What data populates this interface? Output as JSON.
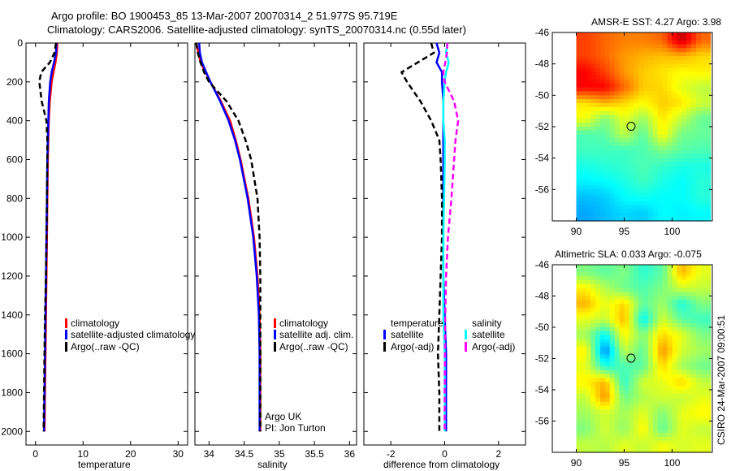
{
  "title": {
    "line1": "Argo profile: BO 1900453_85 13-Mar-2007 20070314_2 51.977S 95.719E",
    "line2": "Climatology: CARS2006. Satellite-adjusted climatology: synTS_20070314.nc (0.55d later)"
  },
  "side_label": "CSIRO 24-Mar-2007 09:00:51",
  "colors": {
    "climatology": "#ff0000",
    "satellite": "#0000ff",
    "argo": "#000000",
    "sal_satellite": "#00ffff",
    "sal_argo": "#ff00ff"
  },
  "chart_data": [
    {
      "type": "line",
      "xlabel": "temperature",
      "xlim": [
        -2,
        32
      ],
      "ylim": [
        0,
        2070
      ],
      "y_reversed": true,
      "xticks": [
        "0",
        "10",
        "20",
        "30"
      ],
      "xtick_values": [
        0,
        10,
        20,
        30
      ],
      "yticks": [
        "0",
        "200",
        "400",
        "600",
        "800",
        "1000",
        "1200",
        "1400",
        "1600",
        "1800",
        "2000"
      ],
      "ytick_values": [
        0,
        200,
        400,
        600,
        800,
        1000,
        1200,
        1400,
        1600,
        1800,
        2000
      ],
      "depth": [
        0,
        50,
        100,
        150,
        200,
        300,
        400,
        500,
        600,
        800,
        1000,
        1200,
        1400,
        1600,
        1800,
        2000
      ],
      "legend": [
        "climatology",
        "satellite-adjusted climatology",
        "Argo(..raw -QC)"
      ],
      "series": [
        {
          "name": "climatology",
          "color": "#ff0000",
          "dash": false,
          "values": [
            4.6,
            4.5,
            4.2,
            3.8,
            3.4,
            3.0,
            2.8,
            2.7,
            2.6,
            2.5,
            2.4,
            2.3,
            2.2,
            2.1,
            2.0,
            1.9
          ]
        },
        {
          "name": "satellite-adjusted climatology",
          "color": "#0000ff",
          "dash": false,
          "values": [
            4.4,
            4.3,
            3.9,
            3.4,
            3.1,
            2.8,
            2.7,
            2.6,
            2.5,
            2.4,
            2.3,
            2.2,
            2.1,
            2.0,
            1.9,
            1.8
          ]
        },
        {
          "name": "Argo(..raw -QC)",
          "color": "#000000",
          "dash": true,
          "values": [
            4.3,
            4.0,
            3.0,
            1.2,
            0.8,
            1.3,
            2.3,
            2.5,
            2.5,
            2.4,
            2.3,
            2.2,
            2.0,
            1.9,
            1.8,
            1.7
          ]
        }
      ]
    },
    {
      "type": "line",
      "xlabel": "salinity",
      "xlim": [
        33.8,
        36.1
      ],
      "ylim": [
        0,
        2070
      ],
      "y_reversed": true,
      "xticks": [
        "34",
        "34.5",
        "35",
        "35.5",
        "36"
      ],
      "xtick_values": [
        34,
        34.5,
        35,
        35.5,
        36
      ],
      "depth": [
        0,
        50,
        100,
        150,
        200,
        300,
        400,
        500,
        600,
        800,
        1000,
        1200,
        1400,
        1600,
        1800,
        2000
      ],
      "legend": [
        "climatology",
        "satellite adj. clim.",
        "Argo(..raw -QC)"
      ],
      "annotation": [
        "Argo UK",
        "PI: Jon Turton"
      ],
      "series": [
        {
          "name": "climatology",
          "color": "#ff0000",
          "dash": false,
          "values": [
            33.82,
            33.85,
            33.88,
            33.95,
            34.02,
            34.17,
            34.3,
            34.38,
            34.45,
            34.56,
            34.64,
            34.69,
            34.72,
            34.73,
            34.73,
            34.73
          ]
        },
        {
          "name": "satellite adj. clim.",
          "color": "#0000ff",
          "dash": false,
          "values": [
            33.86,
            33.87,
            33.9,
            33.96,
            34.02,
            34.16,
            34.28,
            34.37,
            34.44,
            34.55,
            34.63,
            34.68,
            34.71,
            34.72,
            34.72,
            34.72
          ]
        },
        {
          "name": "Argo(..raw -QC)",
          "color": "#000000",
          "dash": true,
          "values": [
            33.82,
            33.84,
            33.88,
            33.93,
            34.0,
            34.25,
            34.42,
            34.52,
            34.6,
            34.69,
            34.72,
            34.73,
            34.73,
            34.73,
            34.73,
            34.73
          ]
        }
      ]
    },
    {
      "type": "line",
      "xlabel": "difference from climatology",
      "xlim": [
        -3,
        3
      ],
      "ylim": [
        0,
        2070
      ],
      "y_reversed": true,
      "xticks": [
        "-2",
        "0",
        "2"
      ],
      "xtick_values": [
        -2,
        0,
        2
      ],
      "depth": [
        0,
        50,
        100,
        150,
        200,
        300,
        400,
        500,
        600,
        800,
        1000,
        1200,
        1400,
        1600,
        1800,
        2000
      ],
      "legend_temperature": {
        "title": "temperature",
        "items": [
          "satellite",
          "Argo(-adj)"
        ]
      },
      "legend_salinity": {
        "title": "salinity",
        "items": [
          "satellite",
          "Argo(-adj)"
        ]
      },
      "series": [
        {
          "name": "temperature satellite",
          "color": "#0000ff",
          "dash": false,
          "values": [
            -0.3,
            -0.2,
            -0.3,
            -0.1,
            -0.1,
            -0.05,
            -0.05,
            -0.05,
            -0.05,
            -0.05,
            -0.05,
            -0.05,
            0.0,
            0.05,
            0.05,
            0.05
          ]
        },
        {
          "name": "temperature Argo(-adj)",
          "color": "#000000",
          "dash": true,
          "values": [
            -0.5,
            -0.4,
            -1.0,
            -1.6,
            -1.4,
            -0.9,
            -0.5,
            -0.2,
            -0.15,
            -0.1,
            -0.1,
            -0.15,
            -0.2,
            -0.25,
            -0.2,
            -0.2
          ]
        },
        {
          "name": "salinity satellite",
          "color": "#00ffff",
          "dash": false,
          "values": [
            0.1,
            0.05,
            0.15,
            0.05,
            0.0,
            -0.05,
            -0.05,
            0.0,
            0.0,
            -0.02,
            -0.05,
            -0.05,
            -0.05,
            0.0,
            0.0,
            0.0
          ]
        },
        {
          "name": "salinity Argo(-adj)",
          "color": "#ff00ff",
          "dash": true,
          "values": [
            0.1,
            0.08,
            0.02,
            -0.05,
            0.0,
            0.35,
            0.5,
            0.4,
            0.35,
            0.25,
            0.12,
            0.05,
            0.02,
            0.01,
            0.0,
            0.0
          ]
        }
      ]
    },
    {
      "type": "heatmap",
      "title": "AMSR-E SST: 4.27 Argo: 3.98",
      "xlim": [
        87.5,
        104.2
      ],
      "ylim": [
        -58,
        -46
      ],
      "xticks": [
        "90",
        "95",
        "100"
      ],
      "xtick_values": [
        90,
        95,
        100
      ],
      "yticks": [
        "-46",
        "-48",
        "-50",
        "-52",
        "-54",
        "-56"
      ],
      "ytick_values": [
        -46,
        -48,
        -50,
        -52,
        -54,
        -56
      ],
      "lon": [
        90,
        92,
        94,
        96,
        98,
        100,
        102,
        104
      ],
      "lat": [
        -46,
        -47,
        -48,
        -49,
        -50,
        -51,
        -52,
        -53,
        -54,
        -55,
        -56,
        -57,
        -58
      ],
      "clim": [
        1,
        9
      ],
      "marker": {
        "lon": 95.719,
        "lat": -51.977
      },
      "grid": [
        [
          7.5,
          7.2,
          7,
          7,
          7.2,
          8.5,
          7.2
        ],
        [
          7.5,
          7.2,
          6.8,
          6.6,
          6.5,
          6.6,
          6.3
        ],
        [
          8,
          7.5,
          6.8,
          6.4,
          6.2,
          6,
          6.1
        ],
        [
          8,
          8,
          7.2,
          6.4,
          6.3,
          5.8,
          5.5
        ],
        [
          6.2,
          6.6,
          6.3,
          6,
          6.4,
          6.2,
          5.6
        ],
        [
          5.9,
          5,
          5.8,
          5.2,
          6.2,
          5.5,
          4.8
        ],
        [
          4.6,
          4.7,
          5.5,
          4.7,
          6,
          4.9,
          4.8
        ],
        [
          4.5,
          4.5,
          4.5,
          4.6,
          5,
          4.7,
          4.6
        ],
        [
          4.2,
          4.3,
          4.4,
          4.6,
          4.4,
          4.2,
          4.2
        ],
        [
          3.9,
          4,
          4.2,
          4.5,
          4.2,
          4,
          4.3
        ],
        [
          3.5,
          3.6,
          4,
          4.1,
          4,
          4,
          4.3
        ],
        [
          3.3,
          3.5,
          3.7,
          3.6,
          4,
          3.9,
          4
        ]
      ]
    },
    {
      "type": "heatmap",
      "title": "Altimetric SLA: 0.033 Argo: -0.075",
      "xlim": [
        87.5,
        104.2
      ],
      "ylim": [
        -58,
        -46
      ],
      "xticks": [
        "90",
        "95",
        "100"
      ],
      "xtick_values": [
        90,
        95,
        100
      ],
      "yticks": [
        "-46",
        "-48",
        "-50",
        "-52",
        "-54",
        "-56"
      ],
      "ytick_values": [
        -46,
        -48,
        -50,
        -52,
        -54,
        -56
      ],
      "lon": [
        90,
        92,
        94,
        96,
        98,
        100,
        102,
        104
      ],
      "lat": [
        -46,
        -47,
        -48,
        -49,
        -50,
        -51,
        -52,
        -53,
        -54,
        -55,
        -56,
        -57,
        -58
      ],
      "clim": [
        -0.3,
        0.3
      ],
      "marker": {
        "lon": 95.719,
        "lat": -51.977
      },
      "grid": [
        [
          0,
          -0.02,
          0,
          -0.05,
          -0.02,
          0.12,
          0.06
        ],
        [
          0.08,
          0.03,
          -0.01,
          -0.03,
          0.0,
          0.05,
          0.04
        ],
        [
          0.12,
          0.06,
          0.1,
          -0.02,
          0.02,
          -0.06,
          0.0
        ],
        [
          0.06,
          0.04,
          0.12,
          -0.08,
          0.05,
          -0.02,
          -0.04
        ],
        [
          0.02,
          -0.08,
          0.08,
          0.0,
          0.1,
          0.06,
          0.0
        ],
        [
          0.08,
          -0.15,
          0.04,
          -0.02,
          0.14,
          0.05,
          0.02
        ],
        [
          0.06,
          -0.06,
          -0.03,
          -0.02,
          0.1,
          0.02,
          -0.01
        ],
        [
          0.08,
          0.12,
          -0.05,
          0.05,
          0.06,
          0.1,
          0.04
        ],
        [
          0.04,
          0.14,
          -0.01,
          0.03,
          0.05,
          0.04,
          0.06
        ],
        [
          0.02,
          0.05,
          0.02,
          0.06,
          0.0,
          0.06,
          0.08
        ],
        [
          0.0,
          0.05,
          0.01,
          0.08,
          -0.02,
          0.06,
          0.04
        ],
        [
          0.04,
          0.03,
          0.06,
          0.04,
          0.07,
          0.05,
          0.06
        ]
      ]
    }
  ]
}
